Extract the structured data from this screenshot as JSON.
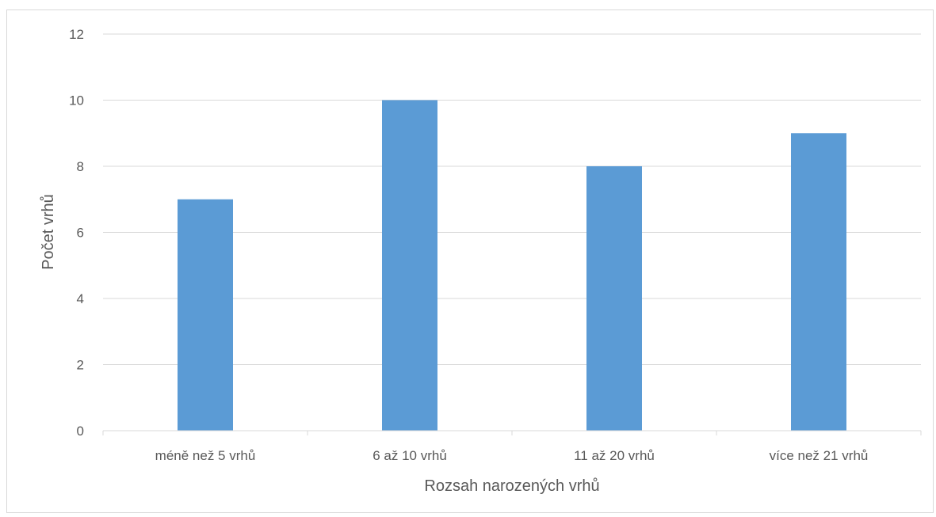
{
  "chart_data": {
    "type": "bar",
    "title": "",
    "xlabel": "Rozsah narozených vrhů",
    "ylabel": "Počet vrhů",
    "categories": [
      "méně než 5 vrhů",
      "6 až 10 vrhů",
      "11 až 20 vrhů",
      "více než 21 vrhů"
    ],
    "values": [
      7,
      10,
      8,
      9
    ],
    "ylim": [
      0,
      12
    ],
    "yticks": [
      0,
      2,
      4,
      6,
      8,
      10,
      12
    ],
    "grid": true,
    "legend": "none",
    "bar_color": "#5b9bd5",
    "grid_color": "#d9d9d9",
    "text_color": "#595959"
  }
}
